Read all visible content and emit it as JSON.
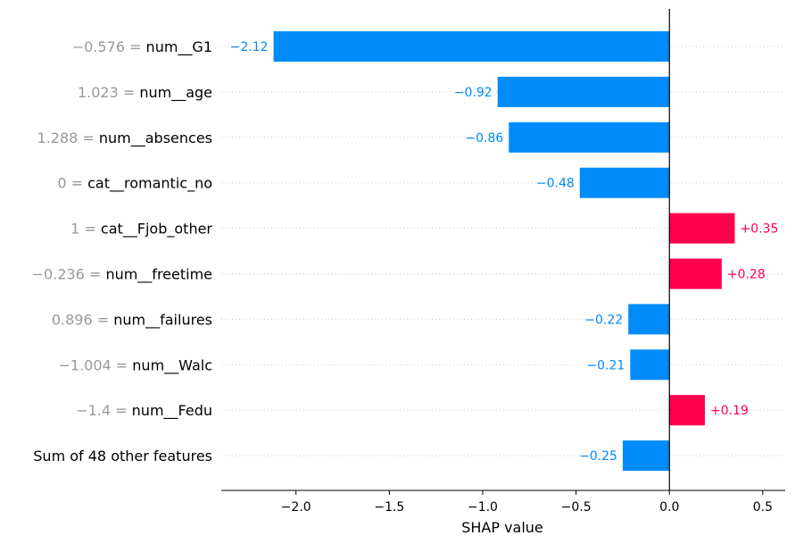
{
  "chart_data": {
    "type": "bar",
    "orientation": "horizontal",
    "xlabel": "SHAP value",
    "xlim": [
      -2.4,
      0.62
    ],
    "xticks": [
      -2.0,
      -1.5,
      -1.0,
      -0.5,
      0.0,
      0.5
    ],
    "xtick_labels": [
      "−2.0",
      "−1.5",
      "−1.0",
      "−0.5",
      "0.0",
      "0.5"
    ],
    "grid": "horizontal dotted",
    "colors": {
      "positive": "#ff0051",
      "negative": "#008bfb",
      "feature_value": "#999999",
      "feature_name": "#000000",
      "axis": "#000000",
      "grid": "#cccccc"
    },
    "rows": [
      {
        "feature_value": "−0.576",
        "feature": "num__G1",
        "shap": -2.12,
        "label": "−2.12"
      },
      {
        "feature_value": "1.023",
        "feature": "num__age",
        "shap": -0.92,
        "label": "−0.92"
      },
      {
        "feature_value": "1.288",
        "feature": "num__absences",
        "shap": -0.86,
        "label": "−0.86"
      },
      {
        "feature_value": "0",
        "feature": "cat__romantic_no",
        "shap": -0.48,
        "label": "−0.48"
      },
      {
        "feature_value": "1",
        "feature": "cat__Fjob_other",
        "shap": 0.35,
        "label": "+0.35"
      },
      {
        "feature_value": "−0.236",
        "feature": "num__freetime",
        "shap": 0.28,
        "label": "+0.28"
      },
      {
        "feature_value": "0.896",
        "feature": "num__failures",
        "shap": -0.22,
        "label": "−0.22"
      },
      {
        "feature_value": "−1.004",
        "feature": "num__Walc",
        "shap": -0.21,
        "label": "−0.21"
      },
      {
        "feature_value": "−1.4",
        "feature": "num__Fedu",
        "shap": 0.19,
        "label": "+0.19"
      },
      {
        "feature_value": "",
        "feature": "Sum of 48 other features",
        "shap": -0.25,
        "label": "−0.25"
      }
    ]
  }
}
